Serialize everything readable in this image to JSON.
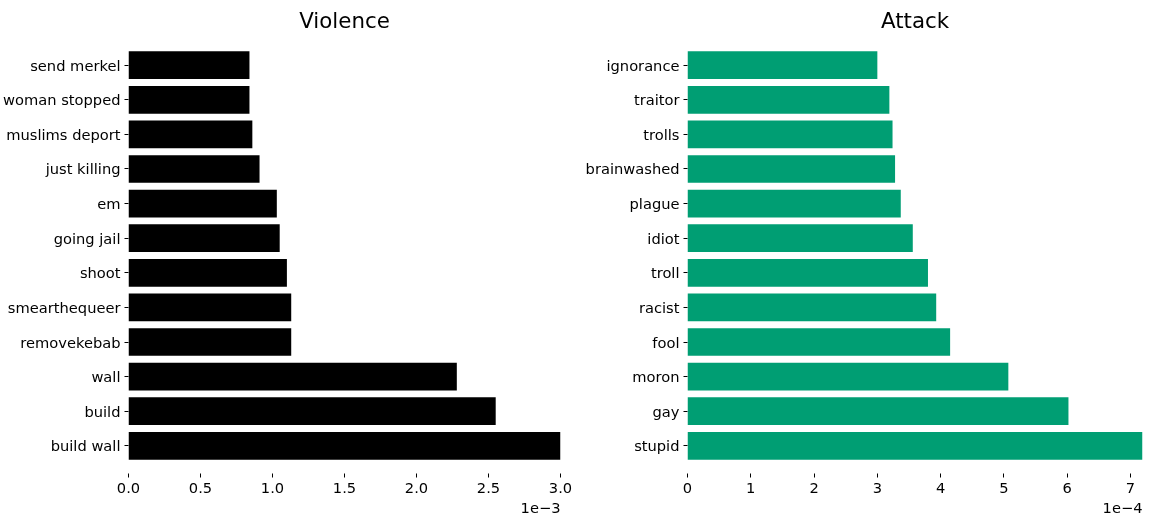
{
  "chart_data": [
    {
      "type": "bar",
      "orientation": "horizontal",
      "title": "Violence",
      "categories": [
        "send merkel",
        "woman stopped",
        "muslims deport",
        "just killing",
        "em",
        "going jail",
        "shoot",
        "smearthequeer",
        "removekebab",
        "wall",
        "build",
        "build wall"
      ],
      "values": [
        0.84,
        0.84,
        0.86,
        0.91,
        1.03,
        1.05,
        1.1,
        1.13,
        1.13,
        2.28,
        2.55,
        3.0
      ],
      "color": "#000000",
      "xlim": [
        0,
        3.0
      ],
      "xticks": [
        {
          "value": 0,
          "label": "0.0"
        },
        0.5,
        {
          "value": 1,
          "label": "1.0"
        },
        1.5,
        {
          "value": 2,
          "label": "2.0"
        },
        2.5,
        {
          "value": 3,
          "label": "3.0"
        }
      ],
      "annotations": [
        "1e−3"
      ],
      "grid": false
    },
    {
      "type": "bar",
      "orientation": "horizontal",
      "title": "Attack",
      "categories": [
        "ignorance",
        "traitor",
        "trolls",
        "brainwashed",
        "plague",
        "idiot",
        "troll",
        "racist",
        "fool",
        "moron",
        "gay",
        "stupid"
      ],
      "values": [
        3.0,
        3.19,
        3.24,
        3.28,
        3.37,
        3.56,
        3.8,
        3.93,
        4.15,
        5.07,
        6.02,
        7.19
      ],
      "color": "#009e73",
      "xlim": [
        0,
        7.19
      ],
      "xticks": [
        0,
        1,
        2,
        3,
        4,
        5,
        6,
        7
      ],
      "annotations": [
        "1e−4"
      ],
      "grid": false
    }
  ]
}
